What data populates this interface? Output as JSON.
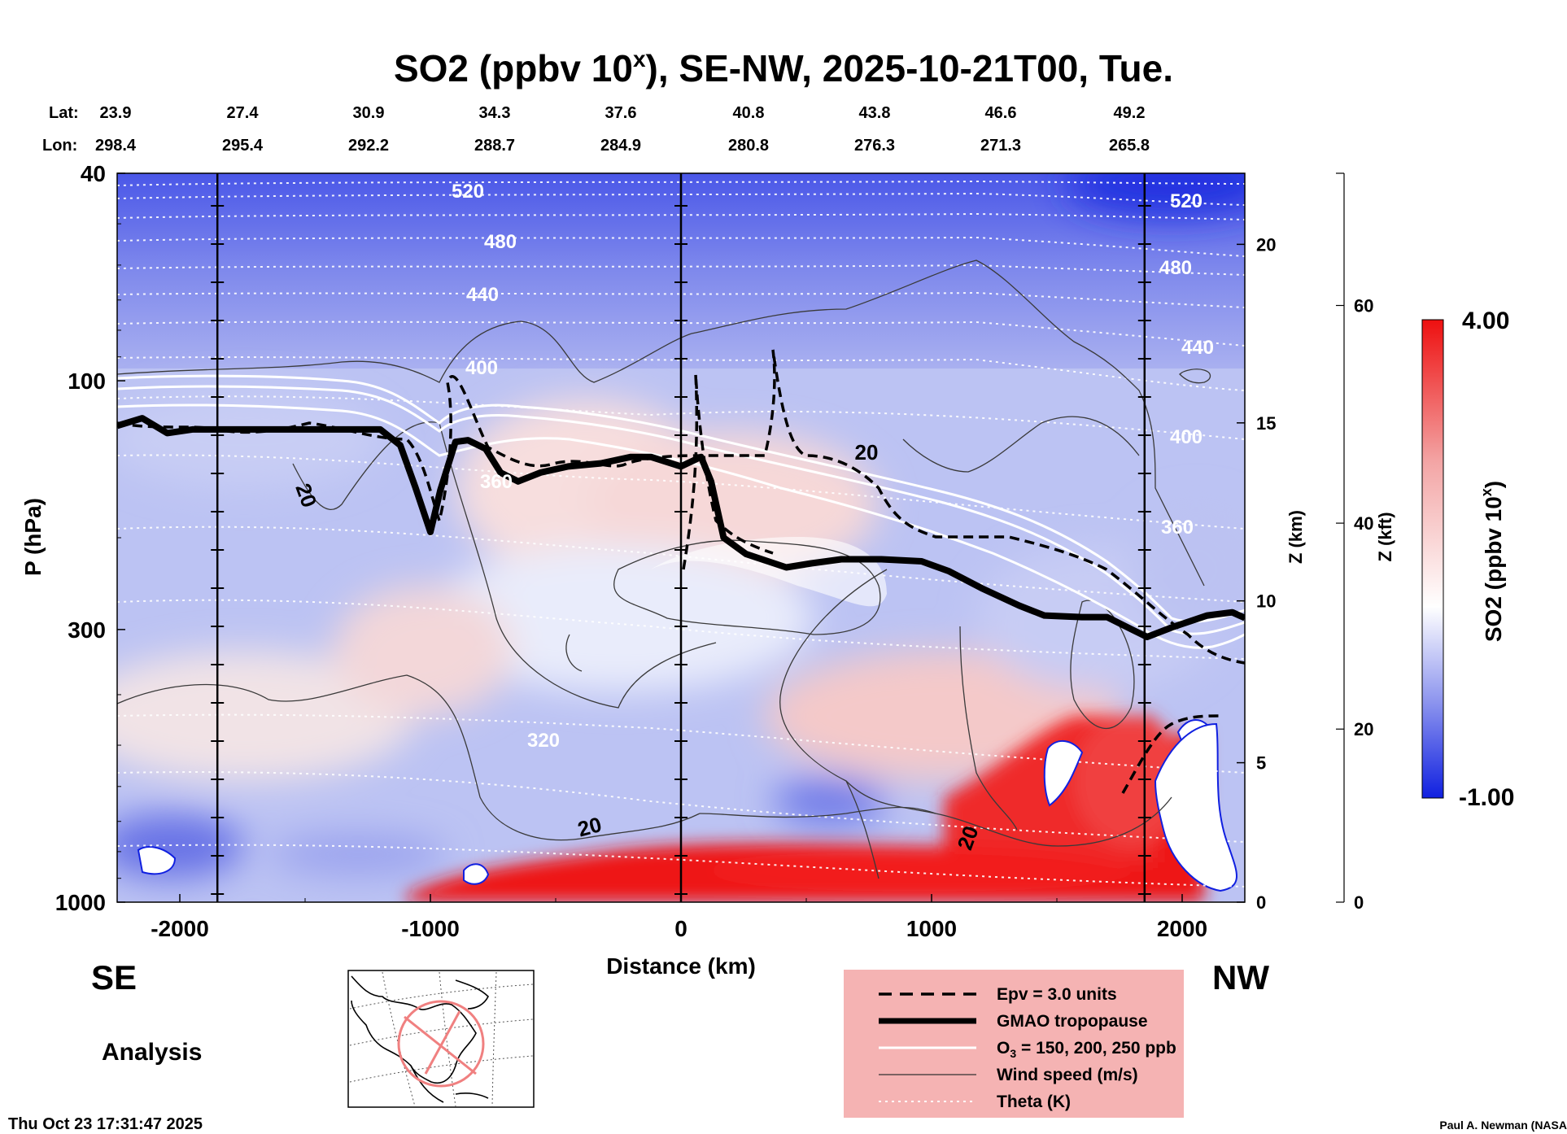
{
  "header": {
    "title_main": "SO2 (ppbv 10",
    "title_sup": "x",
    "title_rest": "), SE-NW, 2025-10-21T00, Tue.",
    "lat_label": "Lat:",
    "lon_label": "Lon:",
    "lats": [
      "23.9",
      "27.4",
      "30.9",
      "34.3",
      "37.6",
      "40.8",
      "43.8",
      "46.6",
      "49.2"
    ],
    "lons": [
      "298.4",
      "295.4",
      "292.2",
      "288.7",
      "284.9",
      "280.8",
      "276.3",
      "271.3",
      "265.8"
    ]
  },
  "chart_data": {
    "type": "heatmap",
    "title": "SO2 (ppbv 10x), SE-NW, 2025-10-21T00, Tue.",
    "xlabel": "Distance (km)",
    "ylabel": "P (hPa)",
    "xlim": [
      -2250,
      2250
    ],
    "ylim": [
      1000,
      40
    ],
    "yscale": "log",
    "x_ticks": [
      -2000,
      -1000,
      0,
      1000,
      2000
    ],
    "y_ticks": [
      40,
      100,
      300,
      1000
    ],
    "z_km_label": "Z (km)",
    "z_km_ticks": [
      0,
      5,
      10,
      15,
      20
    ],
    "z_kft_label": "Z (kft)",
    "z_kft_ticks": [
      0,
      20,
      40,
      60
    ],
    "colorbar": {
      "label": "SO2 (ppbv 10x)",
      "label_main": "SO2 (ppbv 10",
      "label_sup": "x",
      "label_end": ")",
      "min": -1.0,
      "max": 4.0,
      "min_label": "-1.00",
      "max_label": "4.00",
      "low_color": "#1020e0",
      "mid_color": "#ffffff",
      "high_color": "#ee1010"
    },
    "theta_labels": [
      "520",
      "480",
      "440",
      "400",
      "360",
      "320",
      "520",
      "480",
      "440",
      "400",
      "360"
    ],
    "wind_labels": [
      "20",
      "20",
      "20",
      "20"
    ],
    "tropopause": {
      "x": [
        -2250,
        -2150,
        -2050,
        -1950,
        -1850,
        -1700,
        -1500,
        -1350,
        -1200,
        -1120,
        -1060,
        -1000,
        -960,
        -900,
        -850,
        -780,
        -720,
        -650,
        -560,
        -450,
        -320,
        -200,
        -120,
        0,
        80,
        120,
        170,
        260,
        420,
        520,
        640,
        800,
        960,
        1070,
        1200,
        1350,
        1450,
        1600,
        1700,
        1800,
        1860,
        1960,
        2100,
        2200,
        2250
      ],
      "p": [
        122,
        118,
        126,
        124,
        124,
        124,
        124,
        124,
        124,
        133,
        160,
        195,
        162,
        131,
        130,
        135,
        150,
        156,
        150,
        146,
        144,
        140,
        140,
        146,
        140,
        156,
        200,
        215,
        228,
        224,
        220,
        220,
        222,
        232,
        250,
        270,
        282,
        284,
        284,
        300,
        310,
        297,
        282,
        278,
        285
      ]
    },
    "legend": {
      "epv": "Epv = 3.0 units",
      "tropopause": "GMAO tropopause",
      "o3_main": "O",
      "o3_sub": "3",
      "o3_rest": " = 150, 200, 250 ppb",
      "wind": "Wind speed (m/s)",
      "theta": "Theta (K)"
    }
  },
  "footer": {
    "left_dir": "SE",
    "right_dir": "NW",
    "analysis": "Analysis",
    "timestamp": "Thu Oct 23 17:31:47 2025",
    "credit": "Paul A. Newman (NASA"
  }
}
